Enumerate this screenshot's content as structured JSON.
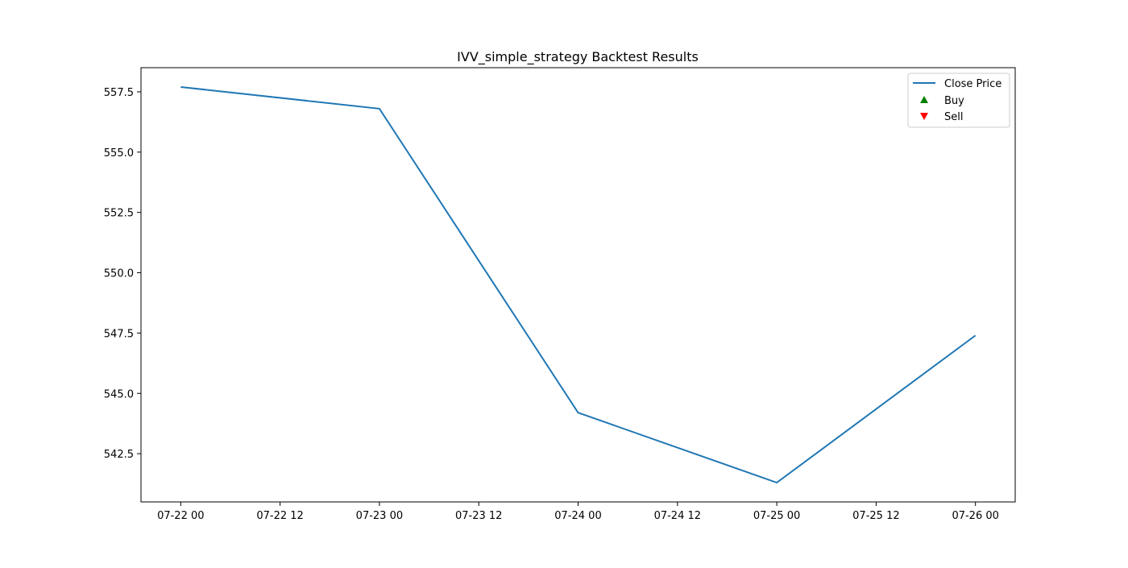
{
  "chart_data": {
    "type": "line",
    "title": "IVV_simple_strategy Backtest Results",
    "xlabel": "",
    "ylabel": "",
    "x": [
      "07-22 00",
      "07-23 00",
      "07-24 00",
      "07-25 00",
      "07-26 00"
    ],
    "x_hours": [
      0,
      24,
      48,
      72,
      96
    ],
    "xlim_hours": [
      -4.8,
      100.8
    ],
    "xticks": [
      {
        "hours": 0,
        "label": "07-22 00"
      },
      {
        "hours": 12,
        "label": "07-22 12"
      },
      {
        "hours": 24,
        "label": "07-23 00"
      },
      {
        "hours": 36,
        "label": "07-23 12"
      },
      {
        "hours": 48,
        "label": "07-24 00"
      },
      {
        "hours": 60,
        "label": "07-24 12"
      },
      {
        "hours": 72,
        "label": "07-25 00"
      },
      {
        "hours": 84,
        "label": "07-25 12"
      },
      {
        "hours": 96,
        "label": "07-26 00"
      }
    ],
    "ylim": [
      540.5,
      558.5
    ],
    "yticks": [
      {
        "value": 542.5,
        "label": "542.5"
      },
      {
        "value": 545.0,
        "label": "545.0"
      },
      {
        "value": 547.5,
        "label": "547.5"
      },
      {
        "value": 550.0,
        "label": "550.0"
      },
      {
        "value": 552.5,
        "label": "552.5"
      },
      {
        "value": 555.0,
        "label": "555.0"
      },
      {
        "value": 557.5,
        "label": "557.5"
      }
    ],
    "series": [
      {
        "name": "Close Price",
        "color": "#1f77b4",
        "values": [
          557.7,
          556.8,
          544.2,
          541.3,
          547.4
        ]
      }
    ],
    "markers": [
      {
        "name": "Buy",
        "color": "#008000",
        "shape": "triangle-up",
        "points": []
      },
      {
        "name": "Sell",
        "color": "#ff0000",
        "shape": "triangle-down",
        "points": []
      }
    ],
    "grid": false,
    "legend_position": "top-right"
  }
}
